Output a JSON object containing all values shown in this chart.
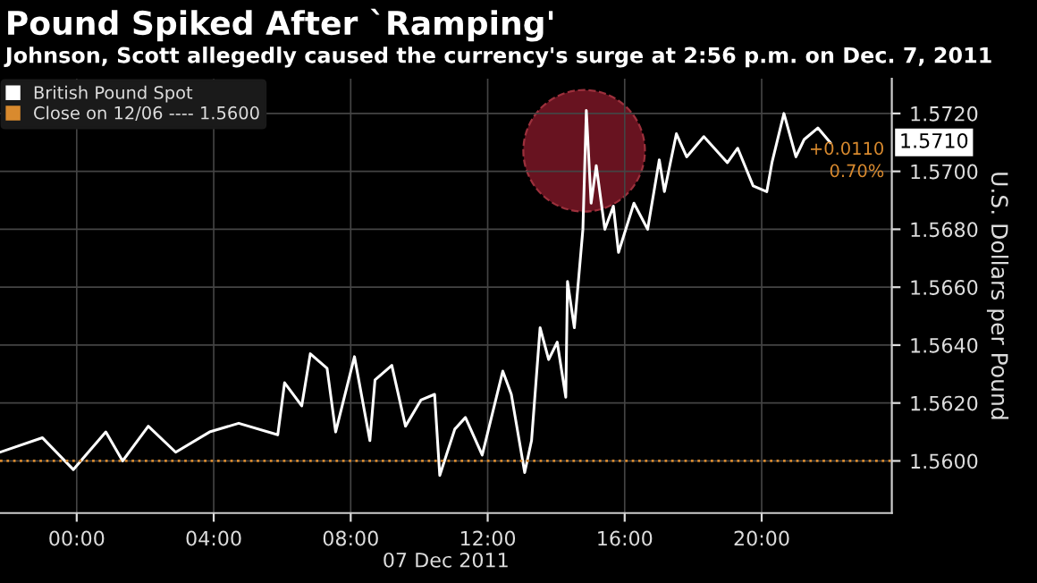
{
  "chart_data": {
    "type": "line",
    "title": "Pound Spiked After `Ramping'",
    "subtitle": "Johnson, Scott allegedly caused the currency's surge at 2:56 p.m. on Dec. 7, 2011",
    "xlabel": "07 Dec 2011",
    "ylabel": "U.S. Dollars per Pound",
    "series": [
      {
        "name": "British Pound Spot",
        "color": "#ffffff",
        "x": [
          -2.24,
          -1.0,
          -0.1,
          0.85,
          1.34,
          2.09,
          2.89,
          3.88,
          4.73,
          5.87,
          6.07,
          6.57,
          6.82,
          7.31,
          7.56,
          8.11,
          8.56,
          8.71,
          9.2,
          9.6,
          10.05,
          10.45,
          10.6,
          11.04,
          11.35,
          11.84,
          12.44,
          12.69,
          13.08,
          13.28,
          13.53,
          13.78,
          14.03,
          14.28,
          14.33,
          14.53,
          14.78,
          14.88,
          15.02,
          15.17,
          15.42,
          15.67,
          15.82,
          16.27,
          16.67,
          17.01,
          17.16,
          17.51,
          17.81,
          18.31,
          19.0,
          19.3,
          19.75,
          20.15,
          20.3,
          20.65,
          21.0,
          21.24,
          21.64,
          22.0
        ],
        "values": [
          1.5603,
          1.5608,
          1.5597,
          1.561,
          1.56,
          1.5612,
          1.5603,
          1.561,
          1.5613,
          1.5609,
          1.5627,
          1.5619,
          1.5637,
          1.5632,
          1.561,
          1.5636,
          1.5607,
          1.5628,
          1.5633,
          1.5612,
          1.5621,
          1.5623,
          1.5595,
          1.5611,
          1.5615,
          1.5602,
          1.5631,
          1.5623,
          1.5596,
          1.5607,
          1.5646,
          1.5635,
          1.5641,
          1.5622,
          1.5662,
          1.5646,
          1.568,
          1.5721,
          1.5689,
          1.5702,
          1.568,
          1.5688,
          1.5672,
          1.5689,
          1.568,
          1.5704,
          1.5693,
          1.5713,
          1.5705,
          1.5712,
          1.5703,
          1.5708,
          1.5695,
          1.5693,
          1.5703,
          1.572,
          1.5705,
          1.5711,
          1.5715,
          1.571
        ]
      }
    ],
    "xlim": [
      -2.24,
      23.8
    ],
    "xticks": [
      {
        "value": 0,
        "label": "00:00"
      },
      {
        "value": 4,
        "label": "04:00"
      },
      {
        "value": 8,
        "label": "08:00"
      },
      {
        "value": 12,
        "label": "12:00"
      },
      {
        "value": 16,
        "label": "16:00"
      },
      {
        "value": 20,
        "label": "20:00"
      }
    ],
    "ylim": [
      1.5582,
      1.5732
    ],
    "yticks": [
      {
        "value": 1.56,
        "label": "1.5600"
      },
      {
        "value": 1.562,
        "label": "1.5620"
      },
      {
        "value": 1.564,
        "label": "1.5640"
      },
      {
        "value": 1.566,
        "label": "1.5660"
      },
      {
        "value": 1.568,
        "label": "1.5680"
      },
      {
        "value": 1.57,
        "label": "1.5700"
      },
      {
        "value": 1.572,
        "label": "1.5720"
      }
    ],
    "ref_lines": [
      {
        "axis": "y",
        "value": 1.56,
        "label": "Close on 12/06 ---- 1.5600",
        "color": "#d98a2e",
        "line_style": "dotted"
      }
    ],
    "annotations": [
      "1.5710",
      "+0.0110",
      "0.70%"
    ],
    "grid": true,
    "legend": "top left"
  }
}
